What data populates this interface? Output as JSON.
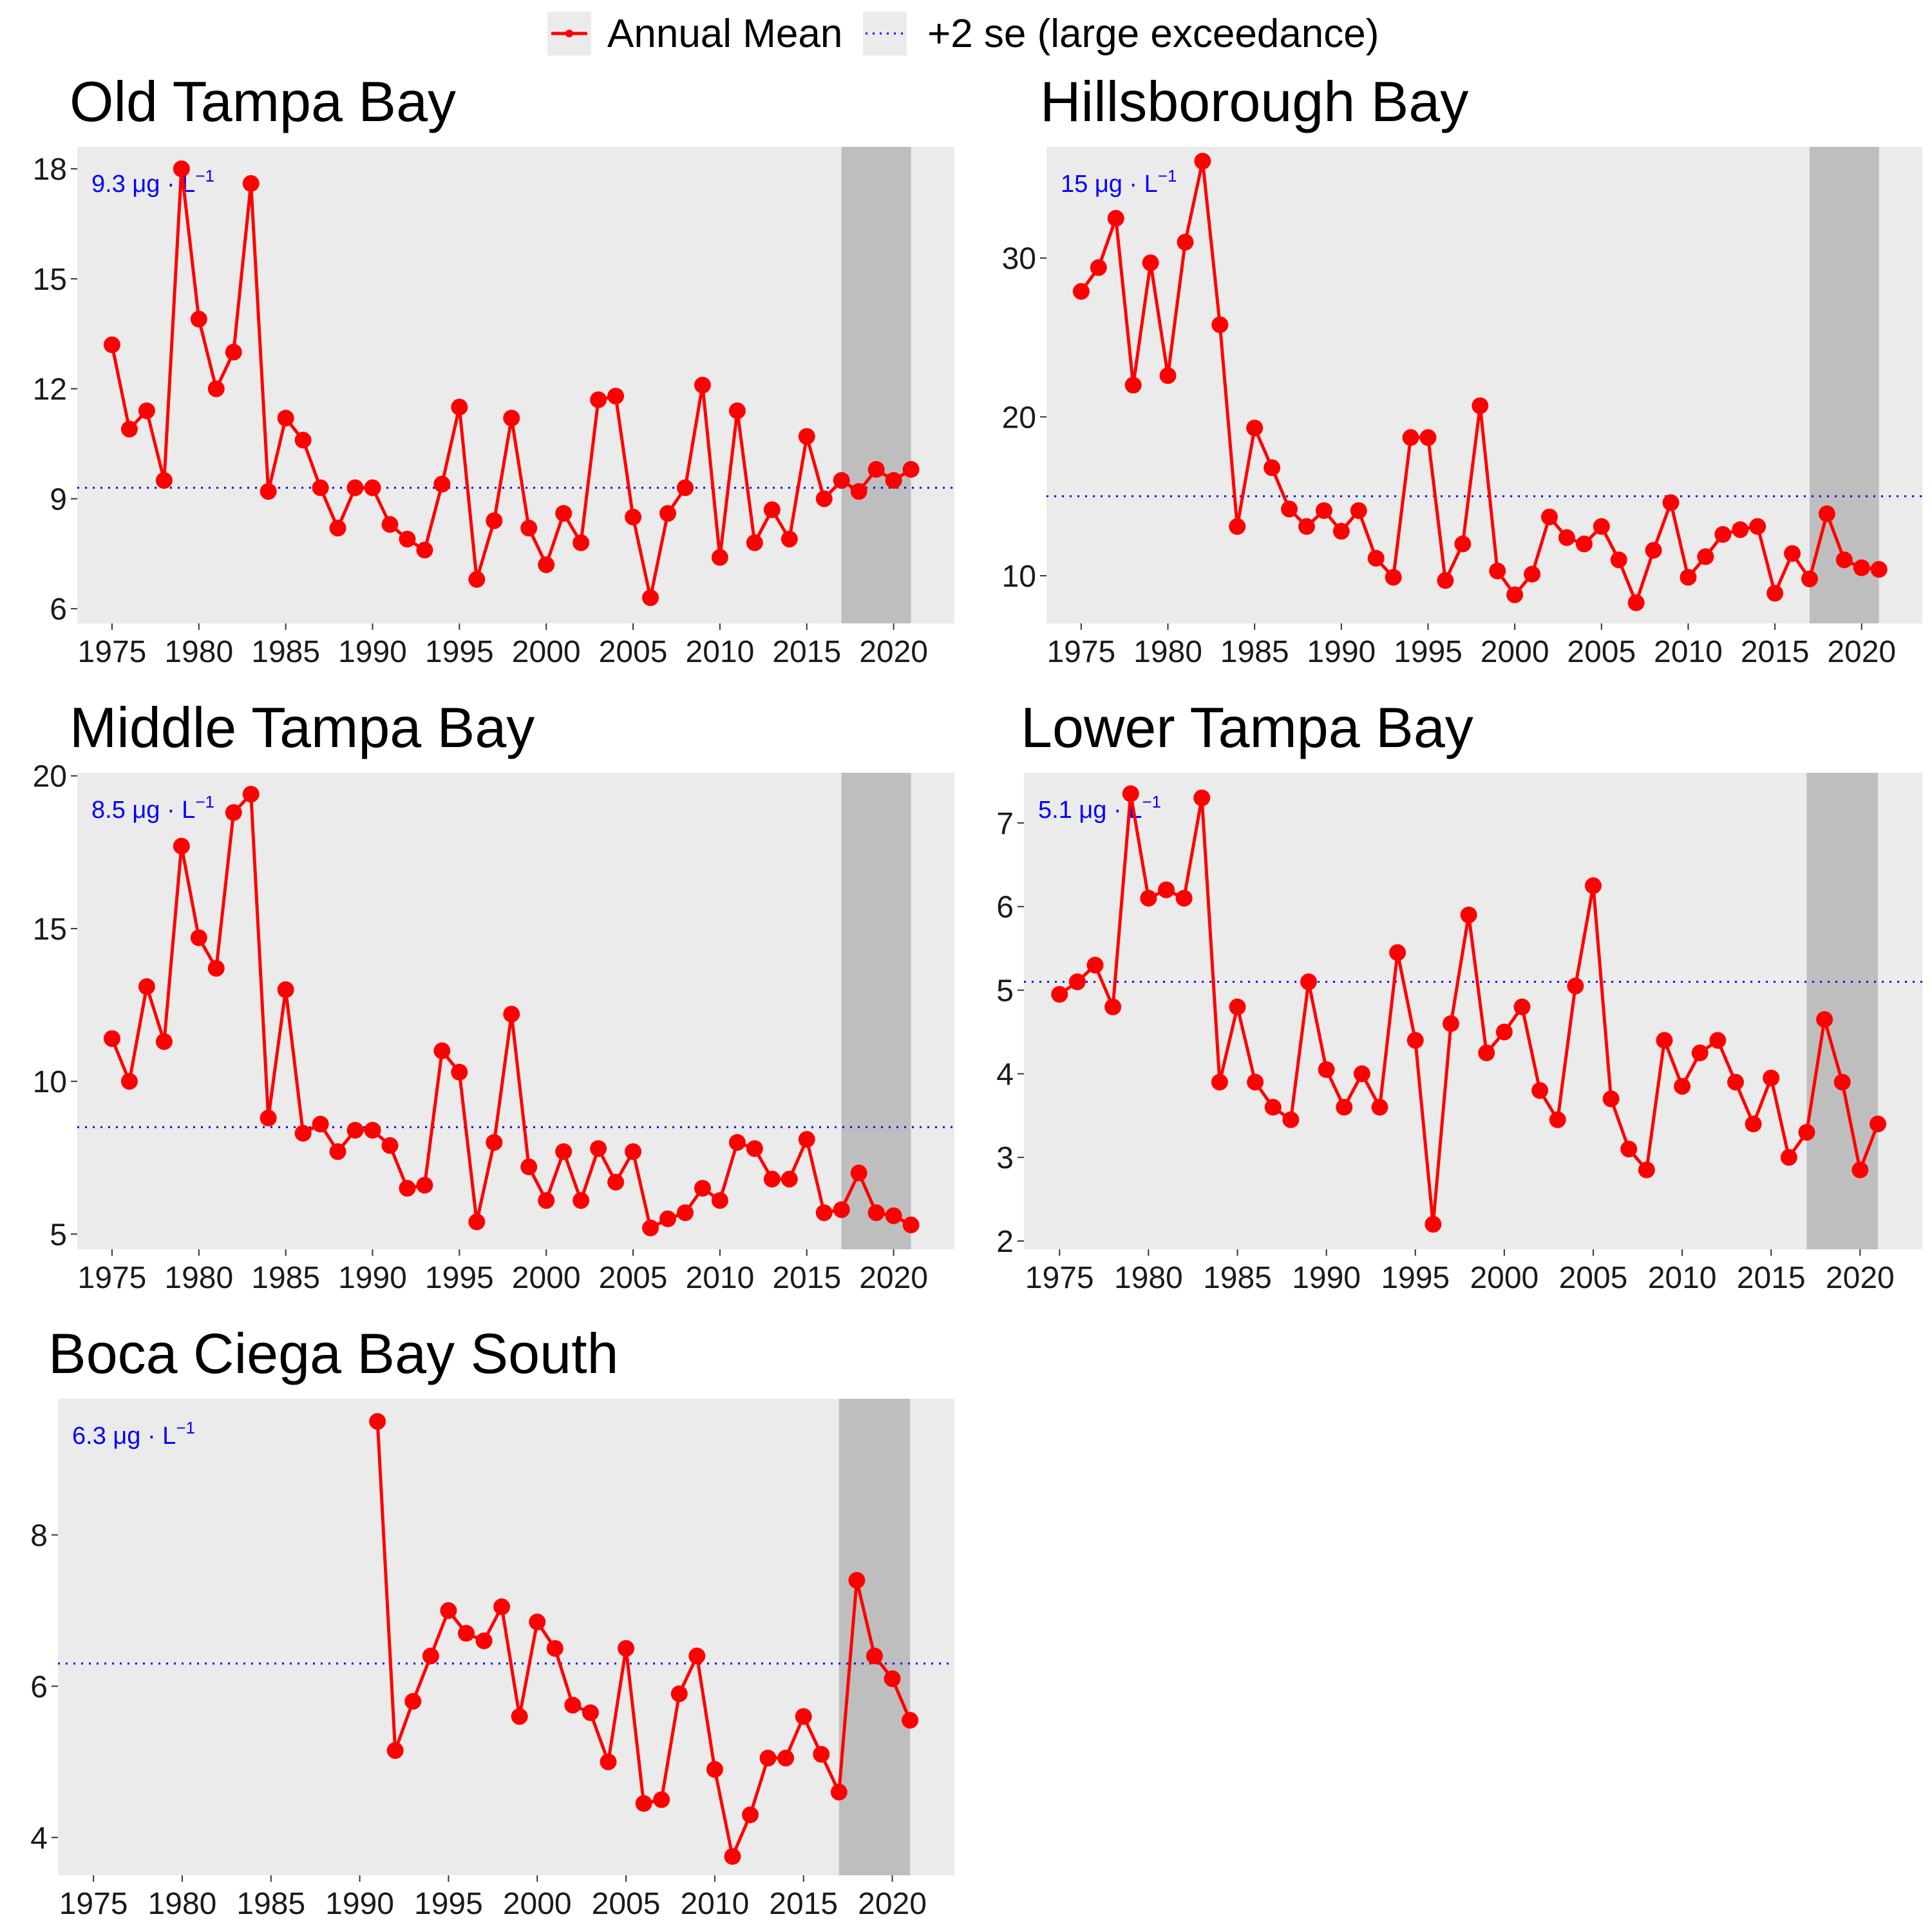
{
  "legend": {
    "items": [
      {
        "label": "Annual Mean",
        "color": "#ff0000",
        "style": "line-point"
      },
      {
        "label": "+2 se (large exceedance)",
        "color": "#0000ff",
        "style": "dotted"
      }
    ]
  },
  "colors": {
    "panel_background": "#ebebeb",
    "shaded_period": "#bebebe",
    "series": "#ff0000",
    "threshold": "#0000ff"
  },
  "chart_data": [
    {
      "type": "line",
      "title": "Old Tampa Bay",
      "xlabel": "",
      "ylabel": "",
      "xlim": [
        1973,
        2023.5
      ],
      "ylim": [
        5.6,
        18.6
      ],
      "xticks": [
        1975,
        1980,
        1985,
        1990,
        1995,
        2000,
        2005,
        2010,
        2015,
        2020
      ],
      "yticks": [
        6,
        9,
        12,
        15,
        18
      ],
      "threshold": {
        "value": 9.3,
        "number": "9.3",
        "unit_text": "μg · L",
        "unit_exp": "−1"
      },
      "shaded": [
        2017,
        2021
      ],
      "x": [
        1975,
        1976,
        1977,
        1978,
        1979,
        1980,
        1981,
        1982,
        1983,
        1984,
        1985,
        1986,
        1987,
        1988,
        1989,
        1990,
        1991,
        1992,
        1993,
        1994,
        1995,
        1996,
        1997,
        1998,
        1999,
        2000,
        2001,
        2002,
        2003,
        2004,
        2005,
        2006,
        2007,
        2008,
        2009,
        2010,
        2011,
        2012,
        2013,
        2014,
        2015,
        2016,
        2017,
        2018,
        2019,
        2020,
        2021
      ],
      "series": [
        {
          "values": [
            13.2,
            10.9,
            11.4,
            9.5,
            18.0,
            13.9,
            12.0,
            13.0,
            17.6,
            9.2,
            11.2,
            10.6,
            9.3,
            8.2,
            9.3,
            9.3,
            8.3,
            7.9,
            7.6,
            9.4,
            11.5,
            6.8,
            8.4,
            11.2,
            8.2,
            7.2,
            8.6,
            7.8,
            11.7,
            11.8,
            8.5,
            6.3,
            8.6,
            9.3,
            12.1,
            7.4,
            11.4,
            7.8,
            8.7,
            7.9,
            10.7,
            9.0,
            9.5,
            9.2,
            9.8,
            9.5,
            9.8
          ]
        }
      ]
    },
    {
      "type": "line",
      "title": "Hillsborough Bay",
      "xlabel": "",
      "ylabel": "",
      "xlim": [
        1973,
        2023.5
      ],
      "ylim": [
        7,
        37
      ],
      "xticks": [
        1975,
        1980,
        1985,
        1990,
        1995,
        2000,
        2005,
        2010,
        2015,
        2020
      ],
      "yticks": [
        10,
        20,
        30
      ],
      "threshold": {
        "value": 15,
        "number": "15",
        "unit_text": "μg · L",
        "unit_exp": "−1"
      },
      "shaded": [
        2017,
        2021
      ],
      "x": [
        1975,
        1976,
        1977,
        1978,
        1979,
        1980,
        1981,
        1982,
        1983,
        1984,
        1985,
        1986,
        1987,
        1988,
        1989,
        1990,
        1991,
        1992,
        1993,
        1994,
        1995,
        1996,
        1997,
        1998,
        1999,
        2000,
        2001,
        2002,
        2003,
        2004,
        2005,
        2006,
        2007,
        2008,
        2009,
        2010,
        2011,
        2012,
        2013,
        2014,
        2015,
        2016,
        2017,
        2018,
        2019,
        2020,
        2021
      ],
      "series": [
        {
          "values": [
            27.9,
            29.4,
            32.5,
            22.0,
            29.7,
            22.6,
            31.0,
            36.1,
            25.8,
            13.1,
            19.3,
            16.8,
            14.2,
            13.1,
            14.1,
            12.8,
            14.1,
            11.1,
            9.9,
            18.7,
            18.7,
            9.7,
            12.0,
            20.7,
            10.3,
            8.8,
            10.1,
            13.7,
            12.4,
            12.0,
            13.1,
            11.0,
            8.3,
            11.6,
            14.6,
            9.9,
            11.2,
            12.6,
            12.9,
            13.1,
            8.9,
            11.4,
            9.8,
            13.9,
            11.0,
            10.5,
            10.4
          ]
        }
      ]
    },
    {
      "type": "line",
      "title": "Middle Tampa Bay",
      "xlabel": "",
      "ylabel": "",
      "xlim": [
        1973,
        2023.5
      ],
      "ylim": [
        4.5,
        20.1
      ],
      "xticks": [
        1975,
        1980,
        1985,
        1990,
        1995,
        2000,
        2005,
        2010,
        2015,
        2020
      ],
      "yticks": [
        5,
        10,
        15,
        20
      ],
      "threshold": {
        "value": 8.5,
        "number": "8.5",
        "unit_text": "μg · L",
        "unit_exp": "−1"
      },
      "shaded": [
        2017,
        2021
      ],
      "x": [
        1975,
        1976,
        1977,
        1978,
        1979,
        1980,
        1981,
        1982,
        1983,
        1984,
        1985,
        1986,
        1987,
        1988,
        1989,
        1990,
        1991,
        1992,
        1993,
        1994,
        1995,
        1996,
        1997,
        1998,
        1999,
        2000,
        2001,
        2002,
        2003,
        2004,
        2005,
        2006,
        2007,
        2008,
        2009,
        2010,
        2011,
        2012,
        2013,
        2014,
        2015,
        2016,
        2017,
        2018,
        2019,
        2020,
        2021
      ],
      "series": [
        {
          "values": [
            11.4,
            10.0,
            13.1,
            11.3,
            17.7,
            14.7,
            13.7,
            18.8,
            19.4,
            8.8,
            13.0,
            8.3,
            8.6,
            7.7,
            8.4,
            8.4,
            7.9,
            6.5,
            6.6,
            11.0,
            10.3,
            5.4,
            8.0,
            12.2,
            7.2,
            6.1,
            7.7,
            6.1,
            7.8,
            6.7,
            7.7,
            5.2,
            5.5,
            5.7,
            6.5,
            6.1,
            8.0,
            7.8,
            6.8,
            6.8,
            8.1,
            5.7,
            5.8,
            7.0,
            5.7,
            5.6,
            5.3
          ]
        }
      ]
    },
    {
      "type": "line",
      "title": "Lower Tampa Bay",
      "xlabel": "",
      "ylabel": "",
      "xlim": [
        1973,
        2023.5
      ],
      "ylim": [
        1.9,
        7.6
      ],
      "xticks": [
        1975,
        1980,
        1985,
        1990,
        1995,
        2000,
        2005,
        2010,
        2015,
        2020
      ],
      "yticks": [
        2,
        3,
        4,
        5,
        6,
        7
      ],
      "threshold": {
        "value": 5.1,
        "number": "5.1",
        "unit_text": "μg · L",
        "unit_exp": "−1"
      },
      "shaded": [
        2017,
        2021
      ],
      "x": [
        1975,
        1976,
        1977,
        1978,
        1979,
        1980,
        1981,
        1982,
        1983,
        1984,
        1985,
        1986,
        1987,
        1988,
        1989,
        1990,
        1991,
        1992,
        1993,
        1994,
        1995,
        1996,
        1997,
        1998,
        1999,
        2000,
        2001,
        2002,
        2003,
        2004,
        2005,
        2006,
        2007,
        2008,
        2009,
        2010,
        2011,
        2012,
        2013,
        2014,
        2015,
        2016,
        2017,
        2018,
        2019,
        2020,
        2021
      ],
      "series": [
        {
          "values": [
            4.95,
            5.1,
            5.3,
            4.8,
            7.35,
            6.1,
            6.2,
            6.1,
            7.3,
            3.9,
            4.8,
            3.9,
            3.6,
            3.45,
            5.1,
            4.05,
            3.6,
            4.0,
            3.6,
            5.45,
            4.4,
            2.2,
            4.6,
            5.9,
            4.25,
            4.5,
            4.8,
            3.8,
            3.45,
            5.05,
            6.25,
            3.7,
            3.1,
            2.85,
            4.4,
            3.85,
            4.25,
            4.4,
            3.9,
            3.4,
            3.95,
            3.0,
            3.3,
            4.65,
            3.9,
            2.85,
            3.4
          ]
        }
      ]
    },
    {
      "type": "line",
      "title": "Boca Ciega Bay South",
      "xlabel": "",
      "ylabel": "",
      "xlim": [
        1973,
        2023.5
      ],
      "ylim": [
        3.5,
        9.8
      ],
      "xticks": [
        1975,
        1980,
        1985,
        1990,
        1995,
        2000,
        2005,
        2010,
        2015,
        2020
      ],
      "yticks": [
        4,
        6,
        8
      ],
      "threshold": {
        "value": 6.3,
        "number": "6.3",
        "unit_text": "μg · L",
        "unit_exp": "−1"
      },
      "shaded": [
        2017,
        2021
      ],
      "x": [
        1991,
        1992,
        1993,
        1994,
        1995,
        1996,
        1997,
        1998,
        1999,
        2000,
        2001,
        2002,
        2003,
        2004,
        2005,
        2006,
        2007,
        2008,
        2009,
        2010,
        2011,
        2012,
        2013,
        2014,
        2015,
        2016,
        2017,
        2018,
        2019,
        2020,
        2021
      ],
      "series": [
        {
          "values": [
            9.5,
            5.15,
            5.8,
            6.4,
            7.0,
            6.7,
            6.6,
            7.05,
            5.6,
            6.85,
            6.5,
            5.75,
            5.65,
            5.0,
            6.5,
            4.45,
            4.5,
            5.9,
            6.4,
            4.9,
            3.75,
            4.3,
            5.05,
            5.05,
            5.6,
            5.1,
            4.6,
            7.4,
            6.4,
            6.1,
            5.55
          ]
        }
      ]
    }
  ]
}
